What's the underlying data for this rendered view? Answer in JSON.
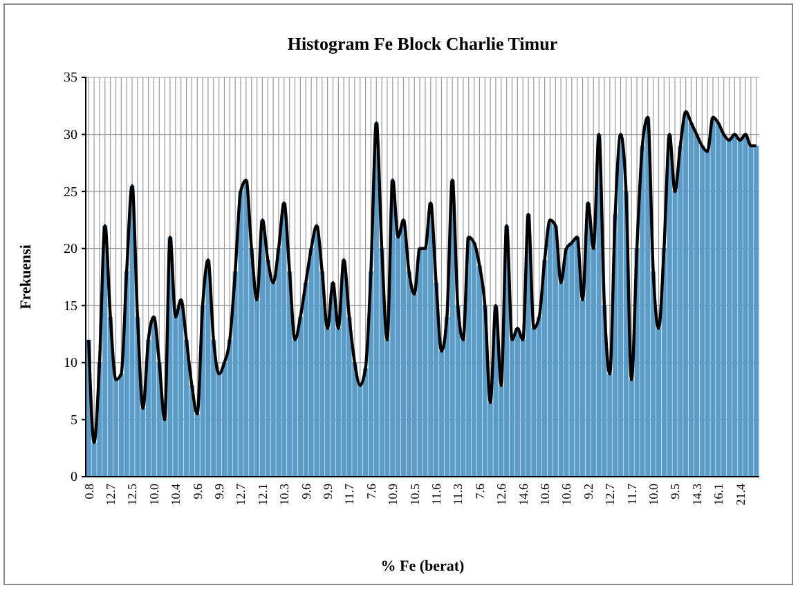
{
  "chart_data": {
    "type": "bar",
    "title": "Histogram Fe Block Charlie Timur",
    "xlabel": "% Fe (berat)",
    "ylabel": "Frekuensi",
    "categories": [
      "0.8",
      null,
      null,
      null,
      "12.7",
      null,
      null,
      null,
      "12.5",
      null,
      null,
      null,
      "10.0",
      null,
      null,
      null,
      "10.4",
      null,
      null,
      null,
      "9.6",
      null,
      null,
      null,
      "9.9",
      null,
      null,
      null,
      "12.7",
      null,
      null,
      null,
      "12.1",
      null,
      null,
      null,
      "10.3",
      null,
      null,
      null,
      "9.6",
      null,
      null,
      null,
      "9.9",
      null,
      null,
      null,
      "11.7",
      null,
      null,
      null,
      "7.6",
      null,
      null,
      null,
      "10.9",
      null,
      null,
      null,
      "10.5",
      null,
      null,
      null,
      "11.6",
      null,
      null,
      null,
      "11.3",
      null,
      null,
      null,
      "7.6",
      null,
      null,
      null,
      "12.6",
      null,
      null,
      null,
      "14.6",
      null,
      null,
      null,
      "10.6",
      null,
      null,
      null,
      "10.6",
      null,
      null,
      null,
      "9.2",
      null,
      null,
      null,
      "12.7",
      null,
      null,
      null,
      "11.7",
      null,
      null,
      null,
      "10.0",
      null,
      null,
      null,
      "9.5",
      null,
      null,
      null,
      "14.3",
      null,
      null,
      null,
      "16.1",
      null,
      null,
      null,
      "21.4",
      null,
      null,
      null
    ],
    "series": [
      {
        "color": "#5b9bc8",
        "values": [
          12,
          3,
          10,
          22,
          14,
          8.5,
          9,
          18,
          25.5,
          14,
          6,
          12,
          14,
          10,
          5,
          21,
          14,
          15.5,
          12,
          8,
          5.5,
          15,
          19,
          12,
          9,
          10,
          12,
          18,
          25,
          26,
          20,
          15.5,
          22.5,
          19,
          17,
          20,
          24,
          18,
          12,
          14,
          17,
          20,
          22,
          18,
          13,
          17,
          13,
          19,
          14,
          10,
          8,
          9.5,
          18,
          31,
          20,
          12,
          26,
          21,
          22.5,
          18,
          16,
          20,
          20,
          24,
          17,
          11,
          14,
          26,
          15,
          12,
          21,
          20.5,
          18.5,
          15,
          6.5,
          15,
          8,
          22,
          12,
          13,
          12,
          23,
          13,
          14,
          19,
          22.5,
          22,
          17,
          20,
          20.5,
          21,
          15.5,
          24,
          20,
          30,
          15,
          9,
          23,
          30,
          25,
          8.5,
          20,
          29,
          31.5,
          18,
          13,
          20,
          30,
          25,
          29,
          32,
          31,
          30,
          29,
          28.5,
          31.5,
          31,
          30,
          29.5,
          30,
          29.5,
          30,
          29,
          29
        ]
      },
      {
        "type": "line",
        "color": "#000000",
        "values": [
          12,
          3,
          10,
          22,
          14,
          8.5,
          9,
          18,
          25.5,
          14,
          6,
          12,
          14,
          10,
          5,
          21,
          14,
          15.5,
          12,
          8,
          5.5,
          15,
          19,
          12,
          9,
          10,
          12,
          18,
          25,
          26,
          20,
          15.5,
          22.5,
          19,
          17,
          20,
          24,
          18,
          12,
          14,
          17,
          20,
          22,
          18,
          13,
          17,
          13,
          19,
          14,
          10,
          8,
          9.5,
          18,
          31,
          20,
          12,
          26,
          21,
          22.5,
          18,
          16,
          20,
          20,
          24,
          17,
          11,
          14,
          26,
          15,
          12,
          21,
          20.5,
          18.5,
          15,
          6.5,
          15,
          8,
          22,
          12,
          13,
          12,
          23,
          13,
          14,
          19,
          22.5,
          22,
          17,
          20,
          20.5,
          21,
          15.5,
          24,
          20,
          30,
          15,
          9,
          23,
          30,
          25,
          8.5,
          20,
          29,
          31.5,
          18,
          13,
          20,
          30,
          25,
          29,
          32,
          31,
          30,
          29,
          28.5,
          31.5,
          31,
          30,
          29.5,
          30,
          29.5,
          30,
          29,
          29
        ]
      }
    ],
    "ylim": [
      0,
      35
    ],
    "yticks": [
      0,
      5,
      10,
      15,
      20,
      25,
      30,
      35
    ],
    "grid": true,
    "line_style": "solid",
    "marker": "none"
  }
}
